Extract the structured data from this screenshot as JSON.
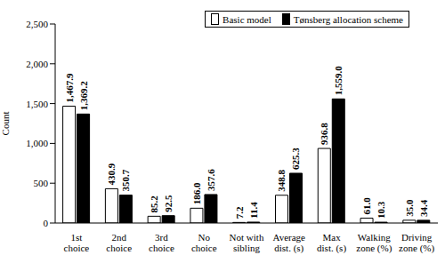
{
  "chart_data": {
    "type": "bar",
    "y_label": "Count",
    "categories": [
      "1st\nchoice",
      "2nd\nchoice",
      "3rd\nchoice",
      "No\nchoice",
      "Not with\nsibling",
      "Average\ndist. (s)",
      "Max\ndist. (s)",
      "Walking\nzone (%)",
      "Driving\nzone (%)"
    ],
    "series": [
      {
        "name": "Basic model",
        "color": "#ffffff",
        "values": [
          1467.9,
          430.9,
          85.2,
          186.0,
          7.2,
          348.8,
          936.8,
          61.0,
          35.0
        ],
        "value_labels": [
          "1,467.9",
          "430.9",
          "85.2",
          "186.0",
          "7.2",
          "348.8",
          "936.8",
          "61.0",
          "35.0"
        ]
      },
      {
        "name": "Tønsberg allocation scheme",
        "color": "#000000",
        "values": [
          1369.2,
          350.7,
          92.5,
          357.6,
          11.4,
          625.3,
          1559.0,
          10.3,
          34.4
        ],
        "value_labels": [
          "1,369.2",
          "350.7",
          "92.5",
          "357.6",
          "11.4",
          "625.3",
          "1,559.0",
          "10.3",
          "34.4"
        ]
      }
    ],
    "ylim": [
      0,
      2500
    ],
    "yticks": [
      0,
      500,
      {
        "value": 1000,
        "label": "1,000"
      },
      {
        "value": 1500,
        "label": "1,500"
      },
      {
        "value": 2000,
        "label": "2,000"
      },
      {
        "value": 2500,
        "label": "2,500"
      }
    ],
    "grid": false,
    "legend": "top right",
    "data_labels": true
  }
}
